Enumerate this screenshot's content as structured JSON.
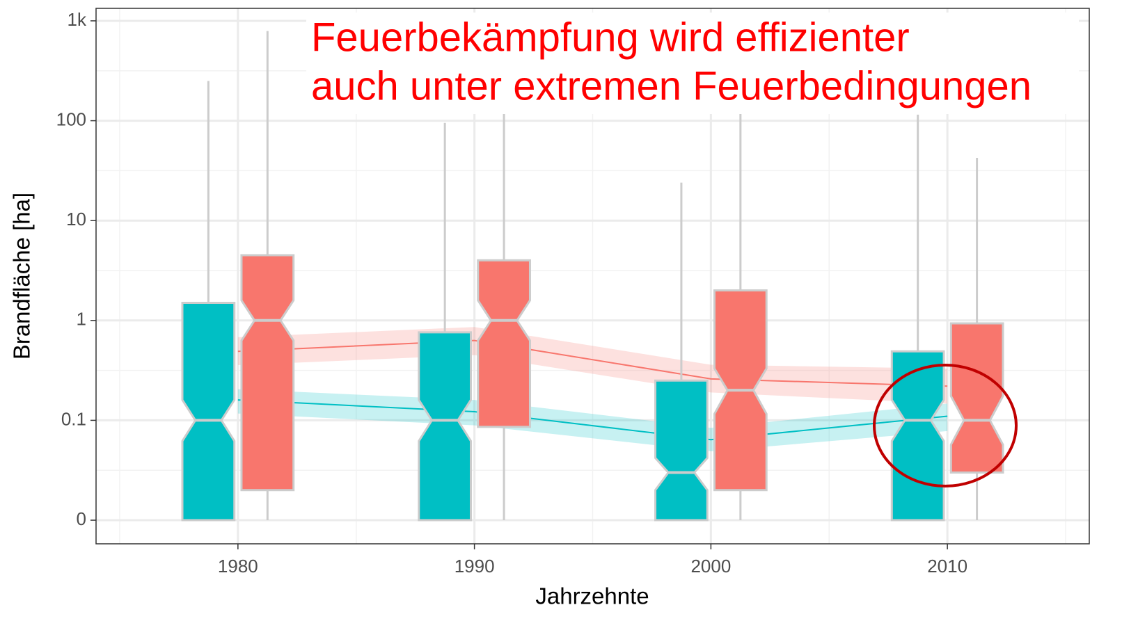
{
  "chart_data": {
    "type": "boxplot",
    "x_label": "Jahrzehnte",
    "y_label": "Brandfläche [ha]",
    "annotation": [
      "Feuerbekämpfung wird effizienter",
      "auch unter extremen Feuerbedingungen"
    ],
    "annotation_color": "#ff0000",
    "x": [
      1980,
      1990,
      2000,
      2010
    ],
    "xlim": [
      1974,
      2016
    ],
    "xticks": [
      1980,
      1990,
      2000,
      2010
    ],
    "ylim": [
      0.0058,
      1334
    ],
    "log_scale": true,
    "yticks": [
      {
        "value": 0.01,
        "label": "0"
      },
      0.1,
      1,
      10,
      100,
      {
        "value": 1000,
        "label": "1k"
      }
    ],
    "grid": true,
    "series": [
      {
        "color": "#00bfc4",
        "ymin": [
          0.01,
          0.01,
          0.01,
          0.01
        ],
        "lower": [
          0.01,
          0.01,
          0.01,
          0.01
        ],
        "middle": [
          0.1,
          0.1,
          0.03,
          0.1
        ],
        "upper": [
          1.5,
          0.76,
          0.25,
          0.49
        ],
        "ymax": [
          250,
          95,
          24,
          115
        ],
        "notch_low": [
          0.062,
          0.062,
          0.02,
          0.062
        ],
        "notch_high": [
          0.16,
          0.16,
          0.042,
          0.16
        ],
        "trend": [
          0.16,
          0.122,
          0.064,
          0.11
        ],
        "trend_low": [
          0.117,
          0.089,
          0.049,
          0.078
        ],
        "trend_high": [
          0.205,
          0.16,
          0.084,
          0.147
        ]
      },
      {
        "color": "#f8766d",
        "ymin": [
          0.01,
          0.01,
          0.01,
          0.01
        ],
        "lower": [
          0.02,
          0.086,
          0.02,
          0.03
        ],
        "middle": [
          1,
          1,
          0.2,
          0.1
        ],
        "upper": [
          4.5,
          4,
          2,
          0.935
        ],
        "ymax": [
          790,
          120,
          120,
          42.5
        ],
        "notch_low": [
          0.63,
          0.63,
          0.116,
          0.057
        ],
        "notch_high": [
          1.59,
          1.59,
          0.33,
          0.175
        ],
        "trend": [
          0.49,
          0.63,
          0.26,
          0.22
        ],
        "trend_low": [
          0.357,
          0.45,
          0.19,
          0.147
        ],
        "trend_high": [
          0.68,
          0.86,
          0.36,
          0.33
        ]
      }
    ]
  }
}
